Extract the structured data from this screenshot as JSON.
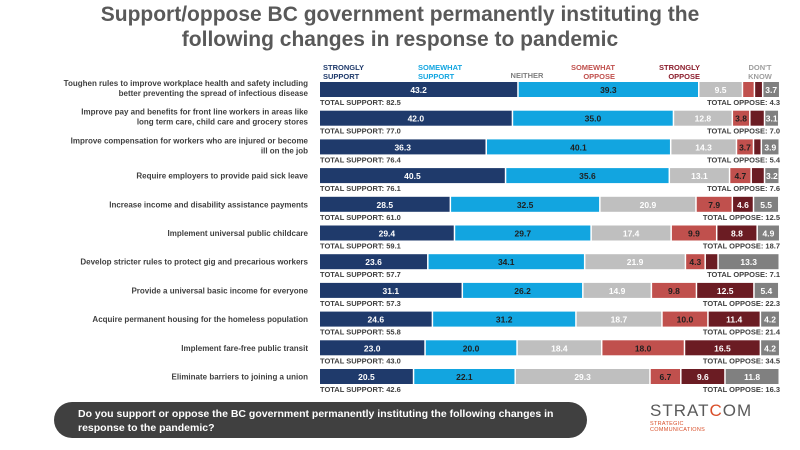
{
  "title": {
    "line1": "Support/oppose BC government permanently instituting the",
    "line2": "following changes in response to pandemic"
  },
  "chart_data": {
    "type": "bar",
    "orientation": "horizontal",
    "stacked": true,
    "legend_placement": "top",
    "series": [
      {
        "key": "strongly_support",
        "header": [
          "STRONGLY",
          "SUPPORT"
        ],
        "color": "#1f3a6b",
        "header_color": "#1f3a6b",
        "text_color": "#ffffff"
      },
      {
        "key": "somewhat_support",
        "header": [
          "SOMEWHAT",
          "SUPPORT"
        ],
        "color": "#12a5e0",
        "header_color": "#12a5e0",
        "text_color": "#1f1f1f"
      },
      {
        "key": "neither",
        "header": [
          "NEITHER"
        ],
        "color": "#bfbfbf",
        "header_color": "#7f7f7f",
        "text_color": "#ffffff"
      },
      {
        "key": "somewhat_oppose",
        "header": [
          "SOMEWHAT",
          "OPPOSE"
        ],
        "color": "#c0504d",
        "header_color": "#c0504d",
        "text_color": "#1f1f1f"
      },
      {
        "key": "strongly_oppose",
        "header": [
          "STRONGLY",
          "OPPOSE"
        ],
        "color": "#6b1c23",
        "header_color": "#8b1d2c",
        "text_color": "#ffffff"
      },
      {
        "key": "dont_know",
        "header": [
          "DON'T",
          "KNOW"
        ],
        "color": "#808080",
        "header_color": "#9e9e9e",
        "text_color": "#ffffff"
      }
    ],
    "categories": [
      {
        "label": [
          "Toughen rules to improve workplace health and safety including",
          "better preventing the spread of infectious disease"
        ],
        "values": [
          43.2,
          39.3,
          9.5,
          2.6,
          1.8,
          3.7
        ],
        "labels": [
          "43.2",
          "39.3",
          "9.5",
          "",
          "",
          "3.7"
        ],
        "total_support": "TOTAL SUPPORT: 82.5",
        "total_oppose": "TOTAL OPPOSE: 4.3"
      },
      {
        "label": [
          "Improve pay and benefits for front line workers in areas like",
          "long term care, child care and grocery stores"
        ],
        "values": [
          42.0,
          35.0,
          12.8,
          3.8,
          3.2,
          3.1
        ],
        "labels": [
          "42.0",
          "35.0",
          "12.8",
          "3.8",
          "",
          "3.1"
        ],
        "total_support": "TOTAL SUPPORT: 77.0",
        "total_oppose": "TOTAL OPPOSE: 7.0"
      },
      {
        "label": [
          "Improve compensation for workers who are injured or become",
          "ill on the job"
        ],
        "values": [
          36.3,
          40.1,
          14.3,
          3.7,
          1.7,
          3.9
        ],
        "labels": [
          "36.3",
          "40.1",
          "14.3",
          "3.7",
          "",
          "3.9"
        ],
        "total_support": "TOTAL SUPPORT: 76.4",
        "total_oppose": "TOTAL OPPOSE: 5.4"
      },
      {
        "label": [
          "Require employers to provide paid sick leave"
        ],
        "values": [
          40.5,
          35.6,
          13.1,
          4.7,
          2.9,
          3.2
        ],
        "labels": [
          "40.5",
          "35.6",
          "13.1",
          "4.7",
          "",
          "3.2"
        ],
        "total_support": "TOTAL SUPPORT: 76.1",
        "total_oppose": "TOTAL OPPOSE: 7.6"
      },
      {
        "label": [
          "Increase income and disability assistance payments"
        ],
        "values": [
          28.5,
          32.5,
          20.9,
          7.9,
          4.6,
          5.5
        ],
        "labels": [
          "28.5",
          "32.5",
          "20.9",
          "7.9",
          "4.6",
          "5.5"
        ],
        "total_support": "TOTAL SUPPORT: 61.0",
        "total_oppose": "TOTAL OPPOSE: 12.5"
      },
      {
        "label": [
          "Implement universal public childcare"
        ],
        "values": [
          29.4,
          29.7,
          17.4,
          9.9,
          8.8,
          4.9
        ],
        "labels": [
          "29.4",
          "29.7",
          "17.4",
          "9.9",
          "8.8",
          "4.9"
        ],
        "total_support": "TOTAL SUPPORT: 59.1",
        "total_oppose": "TOTAL OPPOSE: 18.7"
      },
      {
        "label": [
          "Develop stricter rules to protect gig and precarious workers"
        ],
        "values": [
          23.6,
          34.1,
          21.9,
          4.3,
          2.8,
          13.3
        ],
        "labels": [
          "23.6",
          "34.1",
          "21.9",
          "4.3",
          "",
          "13.3"
        ],
        "total_support": "TOTAL SUPPORT: 57.7",
        "total_oppose": "TOTAL OPPOSE: 7.1"
      },
      {
        "label": [
          "Provide a universal basic income for everyone"
        ],
        "values": [
          31.1,
          26.2,
          14.9,
          9.8,
          12.5,
          5.4
        ],
        "labels": [
          "31.1",
          "26.2",
          "14.9",
          "9.8",
          "12.5",
          "5.4"
        ],
        "total_support": "TOTAL SUPPORT: 57.3",
        "total_oppose": "TOTAL OPPOSE: 22.3"
      },
      {
        "label": [
          "Acquire permanent housing for the homeless population"
        ],
        "values": [
          24.6,
          31.2,
          18.7,
          10.0,
          11.4,
          4.2
        ],
        "labels": [
          "24.6",
          "31.2",
          "18.7",
          "10.0",
          "11.4",
          "4.2"
        ],
        "total_support": "TOTAL SUPPORT: 55.8",
        "total_oppose": "TOTAL OPPOSE: 21.4"
      },
      {
        "label": [
          "Implement fare-free public transit"
        ],
        "values": [
          23.0,
          20.0,
          18.4,
          18.0,
          16.5,
          4.2
        ],
        "labels": [
          "23.0",
          "20.0",
          "18.4",
          "18.0",
          "16.5",
          "4.2"
        ],
        "total_support": "TOTAL SUPPORT: 43.0",
        "total_oppose": "TOTAL OPPOSE: 34.5"
      },
      {
        "label": [
          "Eliminate barriers to joining a union"
        ],
        "values": [
          20.5,
          22.1,
          29.3,
          6.7,
          9.6,
          11.8
        ],
        "labels": [
          "20.5",
          "22.1",
          "29.3",
          "6.7",
          "9.6",
          "11.8"
        ],
        "total_support": "TOTAL SUPPORT: 42.6",
        "total_oppose": "TOTAL OPPOSE: 16.3"
      }
    ]
  },
  "question": {
    "line1": "Do you support or oppose the BC government permanently instituting the following changes in",
    "line2": "response to the pandemic?"
  },
  "logo": {
    "name_part1": "STRAT",
    "name_part2": "C",
    "name_part3": "OM",
    "tagline": "STRATEGIC COMMUNICATIONS"
  }
}
